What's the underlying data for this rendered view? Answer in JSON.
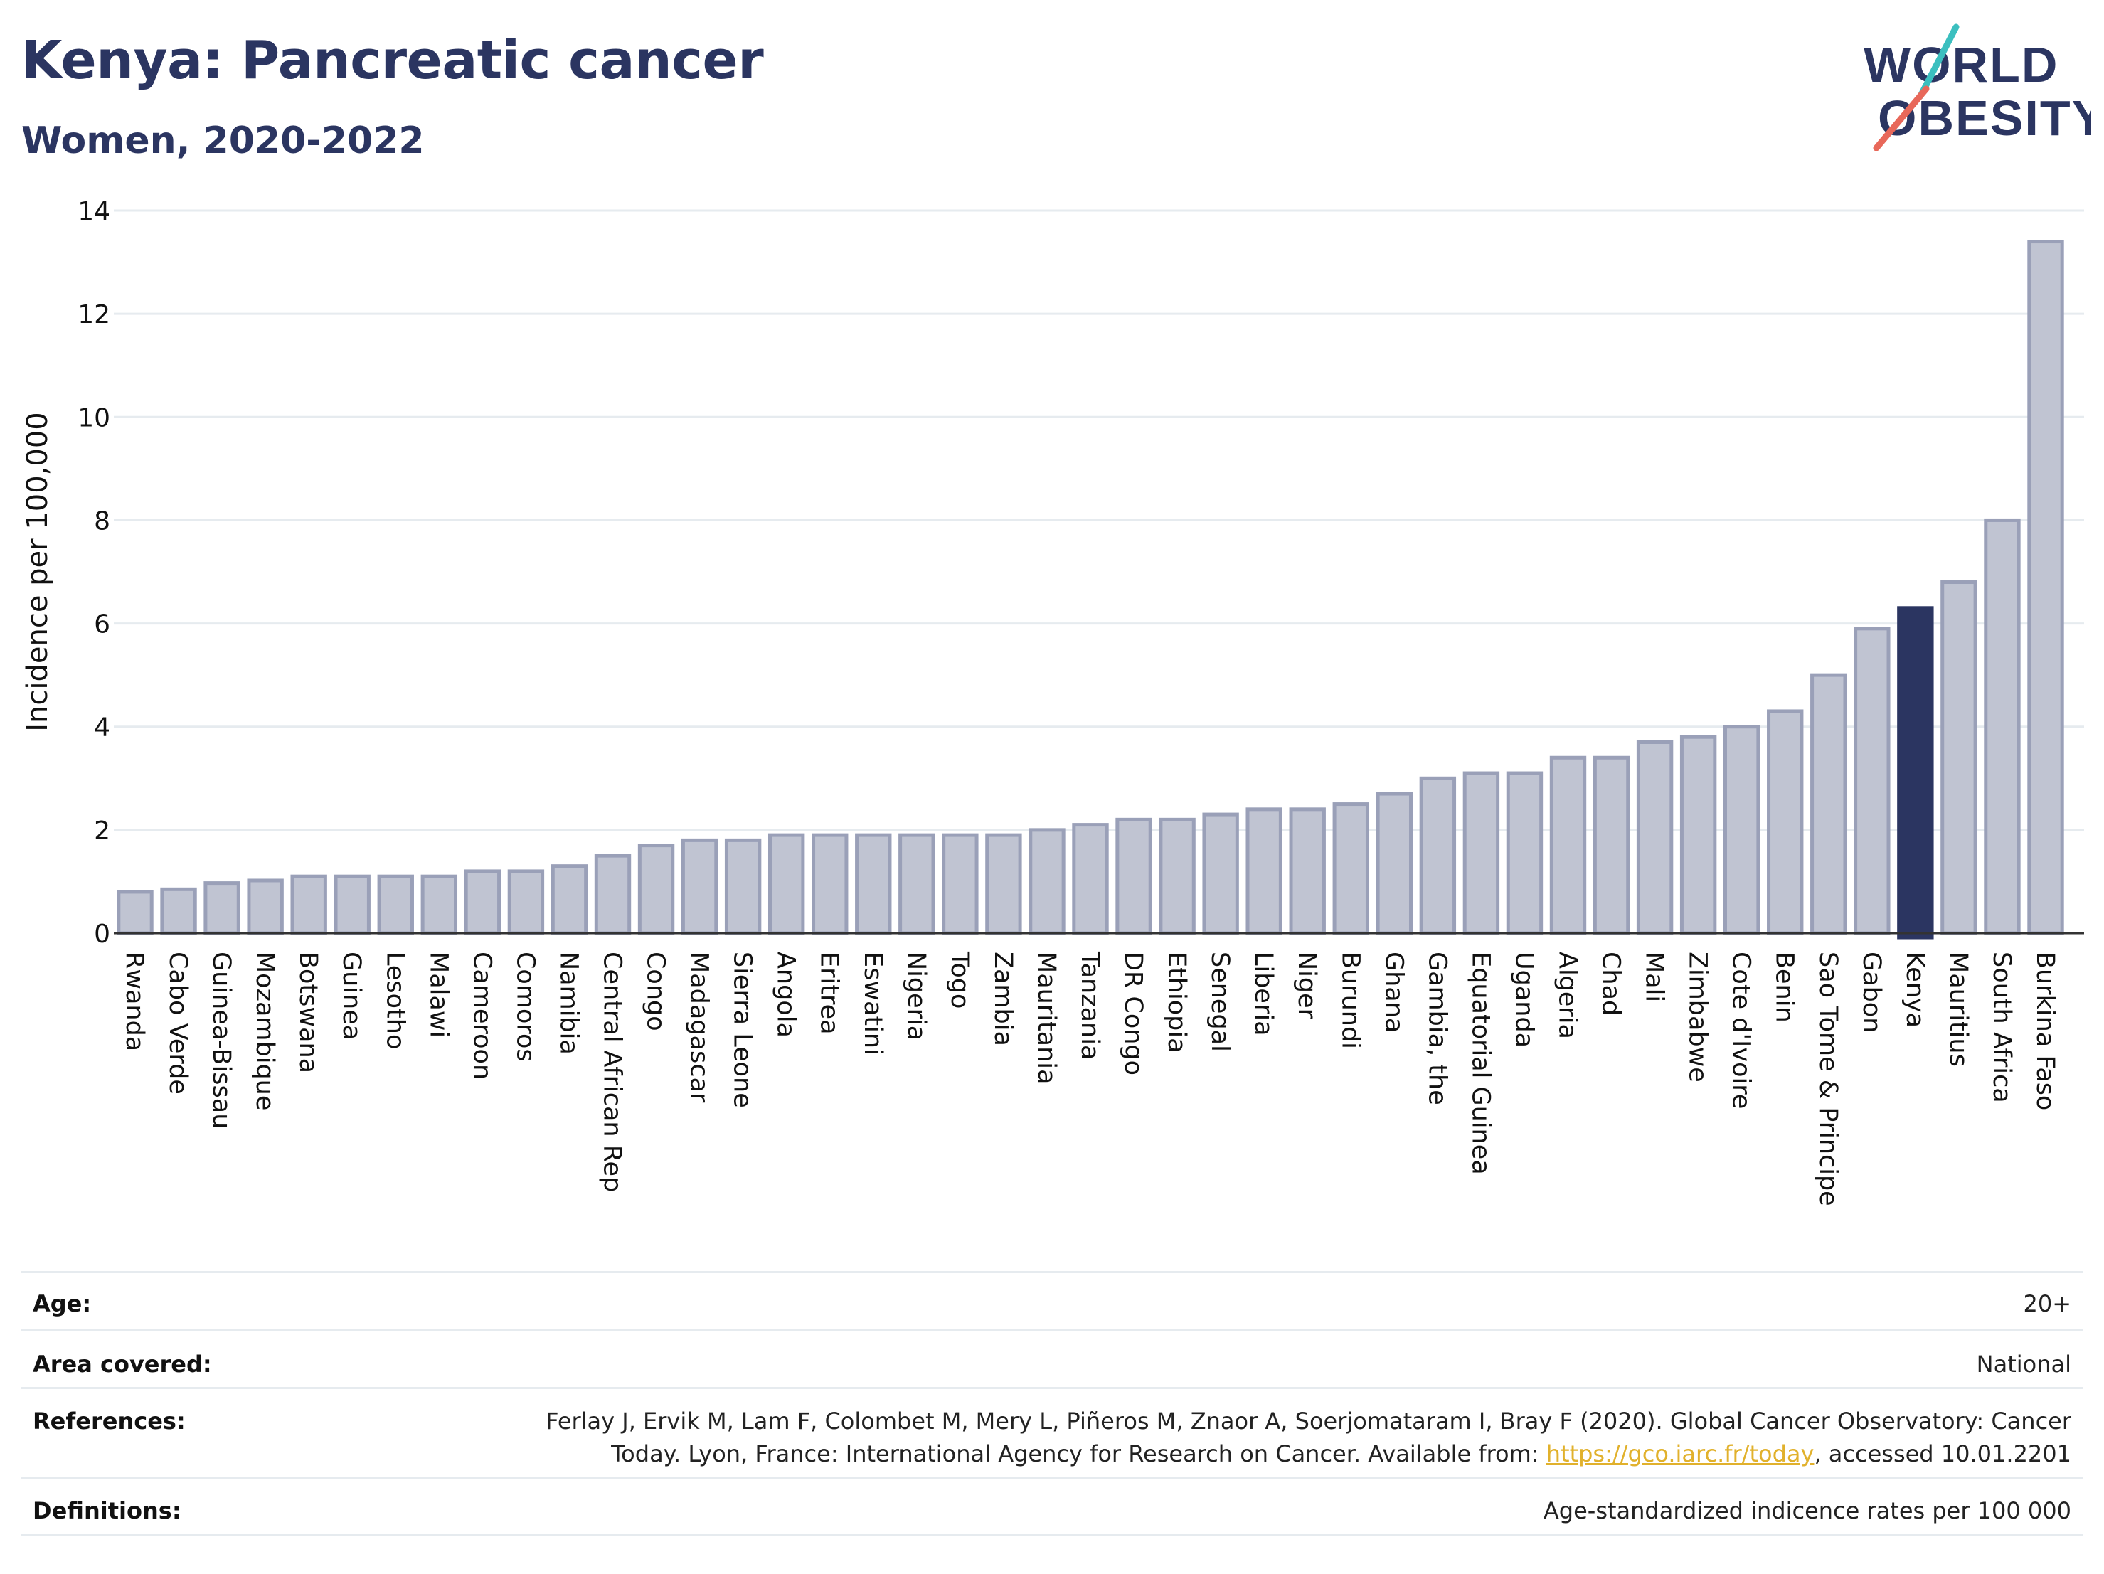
{
  "header": {
    "title": "Kenya: Pancreatic cancer",
    "subtitle": "Women, 2020-2022"
  },
  "logo": {
    "line1": "WORLD",
    "line2": "OBESITY"
  },
  "colors": {
    "title": "#2b3561",
    "bar_default": "#c0c4d2",
    "bar_default_stroke": "#9aa0b8",
    "bar_highlight": "#2b3561",
    "grid": "#e6ebef",
    "link": "#e1b12c",
    "logo_teal": "#3bbfbf",
    "logo_coral": "#e8685a"
  },
  "chart_data": {
    "type": "bar",
    "title": "Kenya: Pancreatic cancer",
    "subtitle": "Women, 2020-2022",
    "xlabel": "",
    "ylabel": "Incidence per 100,000",
    "ylim": [
      0,
      14
    ],
    "yticks": [
      0,
      2,
      4,
      6,
      8,
      10,
      12,
      14
    ],
    "grid": true,
    "highlight": "Kenya",
    "categories": [
      "Rwanda",
      "Cabo Verde",
      "Guinea-Bissau",
      "Mozambique",
      "Botswana",
      "Guinea",
      "Lesotho",
      "Malawi",
      "Cameroon",
      "Comoros",
      "Namibia",
      "Central African Rep",
      "Congo",
      "Madagascar",
      "Sierra Leone",
      "Angola",
      "Eritrea",
      "Eswatini",
      "Nigeria",
      "Togo",
      "Zambia",
      "Mauritania",
      "Tanzania",
      "DR Congo",
      "Ethiopia",
      "Senegal",
      "Liberia",
      "Niger",
      "Burundi",
      "Ghana",
      "Gambia, the",
      "Equatorial Guinea",
      "Uganda",
      "Algeria",
      "Chad",
      "Mali",
      "Zimbabwe",
      "Cote d'Ivoire",
      "Benin",
      "Sao Tome & Principe",
      "Gabon",
      "Kenya",
      "Mauritius",
      "South Africa",
      "Burkina Faso"
    ],
    "values": [
      0.8,
      0.85,
      0.97,
      1.02,
      1.1,
      1.1,
      1.1,
      1.1,
      1.2,
      1.2,
      1.3,
      1.5,
      1.7,
      1.8,
      1.8,
      1.9,
      1.9,
      1.9,
      1.9,
      1.9,
      1.9,
      2.0,
      2.1,
      2.2,
      2.2,
      2.3,
      2.4,
      2.4,
      2.5,
      2.7,
      3.0,
      3.1,
      3.1,
      3.4,
      3.4,
      3.7,
      3.8,
      4.0,
      4.3,
      5.0,
      5.9,
      6.3,
      6.8,
      8.0,
      13.4
    ]
  },
  "metadata": {
    "age_label": "Age:",
    "age_value": "20+",
    "area_label": "Area covered:",
    "area_value": "National",
    "references_label": "References:",
    "references_line1": "Ferlay J, Ervik M, Lam F, Colombet M, Mery L, Piñeros M, Znaor A, Soerjomataram I, Bray F (2020). Global Cancer Observatory: Cancer",
    "references_line2_pre": "Today. Lyon, France: International Agency for Research on Cancer. Available from: ",
    "references_link": "https://gco.iarc.fr/today",
    "references_line2_post": ", accessed 10.01.2201",
    "definitions_label": "Definitions:",
    "definitions_value": "Age-standardized indicence rates per 100 000"
  }
}
